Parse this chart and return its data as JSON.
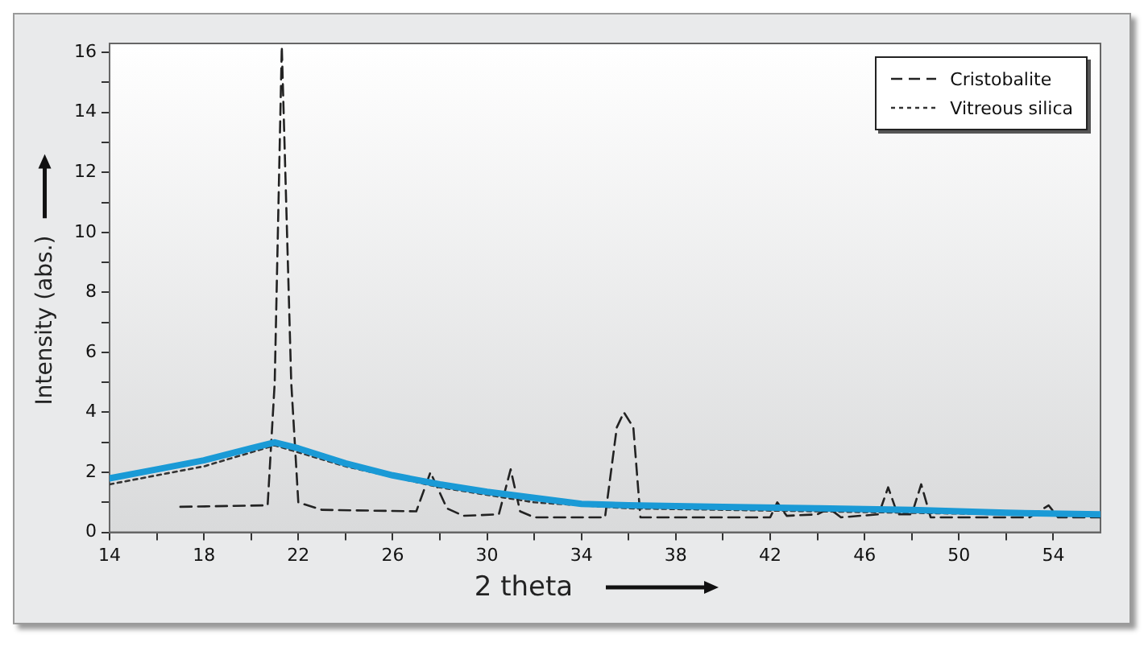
{
  "chart_data": {
    "type": "line",
    "xlabel": "2 theta",
    "ylabel": "Intensity (abs.)",
    "xlim": [
      14,
      56
    ],
    "ylim": [
      0,
      16.3
    ],
    "xticks": [
      14,
      {
        "value": 16,
        "label": null
      },
      18,
      {
        "value": 20,
        "label": null
      },
      22,
      {
        "value": 24,
        "label": null
      },
      26,
      {
        "value": 28,
        "label": null
      },
      30,
      {
        "value": 32,
        "label": null
      },
      34,
      {
        "value": 36,
        "label": null
      },
      38,
      {
        "value": 40,
        "label": null
      },
      42,
      {
        "value": 44,
        "label": null
      },
      46,
      {
        "value": 48,
        "label": null
      },
      50,
      {
        "value": 52,
        "label": null
      },
      54
    ],
    "yticks": [
      0,
      {
        "value": 1,
        "label": null
      },
      2,
      {
        "value": 3,
        "label": null
      },
      4,
      {
        "value": 5,
        "label": null
      },
      6,
      {
        "value": 7,
        "label": null
      },
      8,
      {
        "value": 9,
        "label": null
      },
      10,
      {
        "value": 11,
        "label": null
      },
      12,
      {
        "value": 13,
        "label": null
      },
      14,
      {
        "value": 15,
        "label": null
      },
      16
    ],
    "grid": false,
    "legend": "top right",
    "marker": "none",
    "series": [
      {
        "color": "#1a9ad6",
        "line_style": "solid",
        "x": [
          14,
          16,
          18,
          20,
          21,
          22,
          24,
          26,
          28,
          30,
          32,
          34,
          36,
          40,
          44,
          48,
          52,
          56
        ],
        "values": [
          1.8,
          2.1,
          2.4,
          2.8,
          3.0,
          2.8,
          2.3,
          1.9,
          1.6,
          1.35,
          1.15,
          0.95,
          0.9,
          0.85,
          0.8,
          0.75,
          0.65,
          0.6
        ]
      },
      {
        "name": "Cristobalite",
        "color": "#222222",
        "line_style": "dashed",
        "x": [
          17,
          20.7,
          21.0,
          21.3,
          21.7,
          22,
          23,
          27,
          27.6,
          28.3,
          29,
          30.5,
          31,
          31.4,
          32,
          35,
          35.5,
          35.8,
          36.2,
          36.5,
          42,
          42.3,
          42.7,
          44,
          44.5,
          45,
          46.6,
          47,
          47.4,
          48,
          48.4,
          48.8,
          53,
          53.8,
          54.2,
          56
        ],
        "values": [
          0.85,
          0.9,
          5,
          16.2,
          5,
          1.0,
          0.75,
          0.7,
          2.0,
          0.8,
          0.55,
          0.6,
          2.1,
          0.7,
          0.5,
          0.5,
          3.5,
          4.0,
          3.5,
          0.5,
          0.5,
          1.0,
          0.55,
          0.6,
          0.8,
          0.5,
          0.6,
          1.5,
          0.6,
          0.6,
          1.6,
          0.5,
          0.5,
          0.9,
          0.5,
          0.5
        ]
      },
      {
        "name": "Vitreous silica",
        "color": "#333333",
        "line_style": "dotted",
        "x": [
          14,
          18,
          21,
          24,
          28,
          32,
          36,
          44,
          56
        ],
        "values": [
          1.6,
          2.2,
          2.9,
          2.2,
          1.5,
          1.0,
          0.8,
          0.7,
          0.55
        ]
      }
    ]
  }
}
